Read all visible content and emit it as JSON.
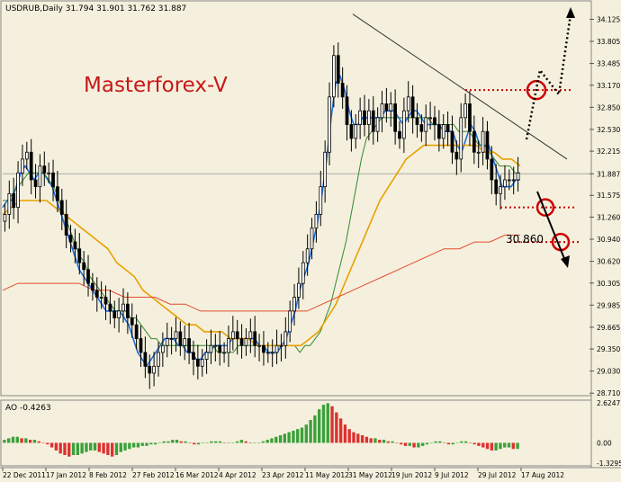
{
  "header": {
    "symbol_info": "USDRUB,Daily  31.794 31.901 31.762 31.887",
    "watermark": "Masterforex-V"
  },
  "colors": {
    "background": "#f5f0dd",
    "bull_candle": "#000000",
    "ma_fast": "#1f6fe0",
    "ma_mid": "#2f8a2f",
    "ma_slow": "#e8a000",
    "ma_long": "#e24a2a",
    "trendline": "#333333",
    "level": "#cc0000",
    "ao_up": "#3aa03a",
    "ao_down": "#dd3030"
  },
  "chart_data": [
    {
      "type": "candlestick",
      "title": "USDRUB,Daily  31.794 31.901 31.762 31.887",
      "ylim": [
        28.7,
        34.3
      ],
      "yticks": [
        "34.125",
        "33.805",
        "33.485",
        "33.170",
        "32.850",
        "32.530",
        "32.215",
        "31.887",
        "31.575",
        "31.260",
        "30.940",
        "30.620",
        "30.305",
        "29.985",
        "29.665",
        "29.350",
        "29.030",
        "28.710"
      ],
      "current_price": "31.887",
      "xlabels": [
        "22 Dec 2011",
        "17 Jan 2012",
        "8 Feb 2012",
        "27 Feb 2012",
        "16 Mar 2012",
        "4 Apr 2012",
        "23 Apr 2012",
        "11 May 2012",
        "31 May 2012",
        "19 Jun 2012",
        "9 Jul 2012",
        "29 Jul 2012",
        "17 Aug 2012"
      ],
      "series": [
        {
          "name": "",
          "role": "close",
          "values": [
            31.3,
            31.6,
            31.4,
            31.9,
            32.1,
            32.2,
            31.8,
            31.7,
            32.0,
            31.9,
            31.9,
            31.7,
            31.5,
            31.3,
            31.0,
            30.9,
            30.8,
            30.6,
            30.5,
            30.3,
            30.2,
            30.1,
            30.1,
            30.0,
            29.9,
            29.8,
            29.9,
            30.0,
            29.8,
            29.7,
            29.5,
            29.3,
            29.1,
            29.0,
            29.1,
            29.3,
            29.4,
            29.5,
            29.5,
            29.6,
            29.4,
            29.5,
            29.3,
            29.2,
            29.1,
            29.2,
            29.3,
            29.4,
            29.4,
            29.3,
            29.3,
            29.5,
            29.6,
            29.5,
            29.4,
            29.5,
            29.6,
            29.4,
            29.4,
            29.3,
            29.3,
            29.3,
            29.4,
            29.4,
            29.6,
            29.9,
            30.1,
            30.3,
            30.6,
            30.8,
            31.1,
            31.3,
            31.7,
            32.2,
            33.0,
            33.6,
            33.2,
            33.0,
            32.6,
            32.4,
            32.6,
            32.8,
            32.6,
            32.8,
            32.5,
            32.7,
            32.9,
            32.8,
            32.9,
            32.5,
            32.4,
            32.8,
            33.0,
            32.7,
            32.6,
            32.5,
            32.7,
            32.7,
            32.6,
            32.4,
            32.6,
            32.5,
            32.2,
            32.1,
            32.7,
            32.9,
            32.5,
            32.2,
            32.2,
            32.5,
            32.1,
            31.8,
            31.6,
            31.7,
            31.8,
            31.8,
            31.8,
            31.9
          ]
        },
        {
          "name": "",
          "role": "ma_fast",
          "values": [
            31.4,
            31.5,
            31.5,
            31.7,
            31.9,
            32.0,
            31.9,
            31.8,
            31.9,
            31.9,
            31.8,
            31.7,
            31.5,
            31.3,
            31.1,
            30.9,
            30.7,
            30.5,
            30.4,
            30.3,
            30.2,
            30.1,
            30.0,
            29.9,
            29.9,
            29.9,
            29.9,
            29.8,
            29.7,
            29.5,
            29.3,
            29.2,
            29.1,
            29.2,
            29.3,
            29.4,
            29.5,
            29.5,
            29.5,
            29.4,
            29.4,
            29.3,
            29.3,
            29.2,
            29.2,
            29.3,
            29.3,
            29.4,
            29.4,
            29.4,
            29.4,
            29.5,
            29.5,
            29.5,
            29.5,
            29.5,
            29.5,
            29.4,
            29.4,
            29.3,
            29.3,
            29.3,
            29.4,
            29.5,
            29.7,
            29.9,
            30.2,
            30.4,
            30.6,
            30.9,
            31.2,
            31.6,
            32.1,
            32.7,
            33.2,
            33.3,
            33.1,
            32.8,
            32.6,
            32.6,
            32.7,
            32.7,
            32.7,
            32.7,
            32.7,
            32.8,
            32.8,
            32.8,
            32.7,
            32.6,
            32.7,
            32.8,
            32.8,
            32.7,
            32.6,
            32.6,
            32.6,
            32.6,
            32.5,
            32.5,
            32.5,
            32.3,
            32.2,
            32.4,
            32.6,
            32.5,
            32.3,
            32.3,
            32.3,
            32.1,
            31.9,
            31.7,
            31.7,
            31.7,
            31.8,
            31.8
          ]
        },
        {
          "name": "",
          "role": "ma_mid",
          "values": [
            31.5,
            31.5,
            31.6,
            31.7,
            31.8,
            31.9,
            31.9,
            31.9,
            31.9,
            31.8,
            31.7,
            31.5,
            31.3,
            31.1,
            30.9,
            30.7,
            30.6,
            30.4,
            30.3,
            30.2,
            30.1,
            30.0,
            29.9,
            29.9,
            29.9,
            29.8,
            29.8,
            29.7,
            29.6,
            29.5,
            29.5,
            29.4,
            29.4,
            29.4,
            29.4,
            29.4,
            29.4,
            29.4,
            29.4,
            29.4,
            29.4,
            29.4,
            29.3,
            29.3,
            29.3,
            29.3,
            29.4,
            29.4,
            29.4,
            29.4,
            29.4,
            29.4,
            29.4,
            29.4,
            29.4,
            29.4,
            29.4,
            29.4,
            29.3,
            29.4,
            29.4,
            29.5,
            29.6,
            29.8,
            30.0,
            30.3,
            30.6,
            30.9,
            31.3,
            31.7,
            32.1,
            32.4,
            32.5,
            32.6,
            32.7,
            32.7,
            32.7,
            32.7,
            32.7,
            32.7,
            32.7,
            32.7,
            32.7,
            32.7,
            32.6,
            32.6,
            32.6,
            32.6,
            32.6,
            32.5,
            32.5,
            32.5,
            32.4,
            32.3,
            32.3,
            32.2,
            32.1,
            32.0,
            32.0,
            32.0,
            31.9,
            31.9
          ]
        },
        {
          "name": "",
          "role": "ma_slow",
          "values": [
            31.3,
            31.4,
            31.5,
            31.5,
            31.5,
            31.5,
            31.4,
            31.3,
            31.2,
            31.1,
            31.0,
            30.9,
            30.8,
            30.6,
            30.5,
            30.4,
            30.2,
            30.1,
            30.0,
            29.9,
            29.8,
            29.7,
            29.7,
            29.6,
            29.6,
            29.6,
            29.5,
            29.5,
            29.5,
            29.4,
            29.4,
            29.4,
            29.4,
            29.4,
            29.4,
            29.5,
            29.6,
            29.8,
            30.0,
            30.3,
            30.6,
            30.9,
            31.2,
            31.5,
            31.7,
            31.9,
            32.1,
            32.2,
            32.3,
            32.3,
            32.3,
            32.3,
            32.3,
            32.3,
            32.3,
            32.2,
            32.2,
            32.1,
            32.1,
            32.0
          ]
        },
        {
          "name": "",
          "role": "ma_long",
          "values": [
            30.2,
            30.3,
            30.3,
            30.3,
            30.3,
            30.3,
            30.2,
            30.2,
            30.1,
            30.1,
            30.1,
            30.0,
            30.0,
            29.9,
            29.9,
            29.9,
            29.9,
            29.9,
            29.9,
            29.9,
            29.9,
            30.0,
            30.1,
            30.2,
            30.3,
            30.4,
            30.5,
            30.6,
            30.7,
            30.8,
            30.8,
            30.9,
            30.9,
            31.0,
            31.0
          ]
        }
      ],
      "annotations": {
        "price_label": "30.860",
        "levels": [
          33.1,
          31.4,
          30.9
        ]
      }
    },
    {
      "type": "bar",
      "title": "AO -0.4263",
      "ylim": [
        -1.3295,
        2.6247
      ],
      "yticks": [
        "2.6247",
        "0.00",
        "-1.3295"
      ],
      "values": [
        0.2,
        0.3,
        0.4,
        0.4,
        0.3,
        0.3,
        0.2,
        0.2,
        0.1,
        0.0,
        -0.1,
        -0.3,
        -0.5,
        -0.7,
        -0.8,
        -0.9,
        -0.8,
        -0.8,
        -0.7,
        -0.6,
        -0.5,
        -0.5,
        -0.6,
        -0.7,
        -0.8,
        -0.9,
        -0.8,
        -0.6,
        -0.5,
        -0.4,
        -0.3,
        -0.3,
        -0.2,
        -0.2,
        -0.1,
        -0.1,
        0.0,
        0.1,
        0.1,
        0.2,
        0.2,
        0.1,
        0.1,
        0.0,
        -0.1,
        -0.1,
        0.0,
        0.0,
        0.1,
        0.1,
        0.1,
        0.0,
        0.0,
        0.0,
        0.1,
        0.2,
        0.1,
        0.0,
        0.0,
        0.0,
        0.1,
        0.2,
        0.3,
        0.4,
        0.5,
        0.6,
        0.7,
        0.8,
        0.9,
        1.0,
        1.2,
        1.5,
        1.8,
        2.2,
        2.5,
        2.6,
        2.4,
        2.0,
        1.6,
        1.2,
        0.9,
        0.7,
        0.6,
        0.5,
        0.4,
        0.3,
        0.3,
        0.2,
        0.2,
        0.1,
        0.1,
        0.0,
        -0.1,
        -0.2,
        -0.2,
        -0.3,
        -0.3,
        -0.2,
        -0.1,
        0.0,
        0.1,
        0.1,
        0.0,
        -0.1,
        -0.1,
        0.0,
        0.1,
        0.1,
        0.0,
        -0.1,
        -0.2,
        -0.3,
        -0.4,
        -0.5,
        -0.5,
        -0.4,
        -0.3,
        -0.3,
        -0.4,
        -0.4
      ]
    }
  ]
}
